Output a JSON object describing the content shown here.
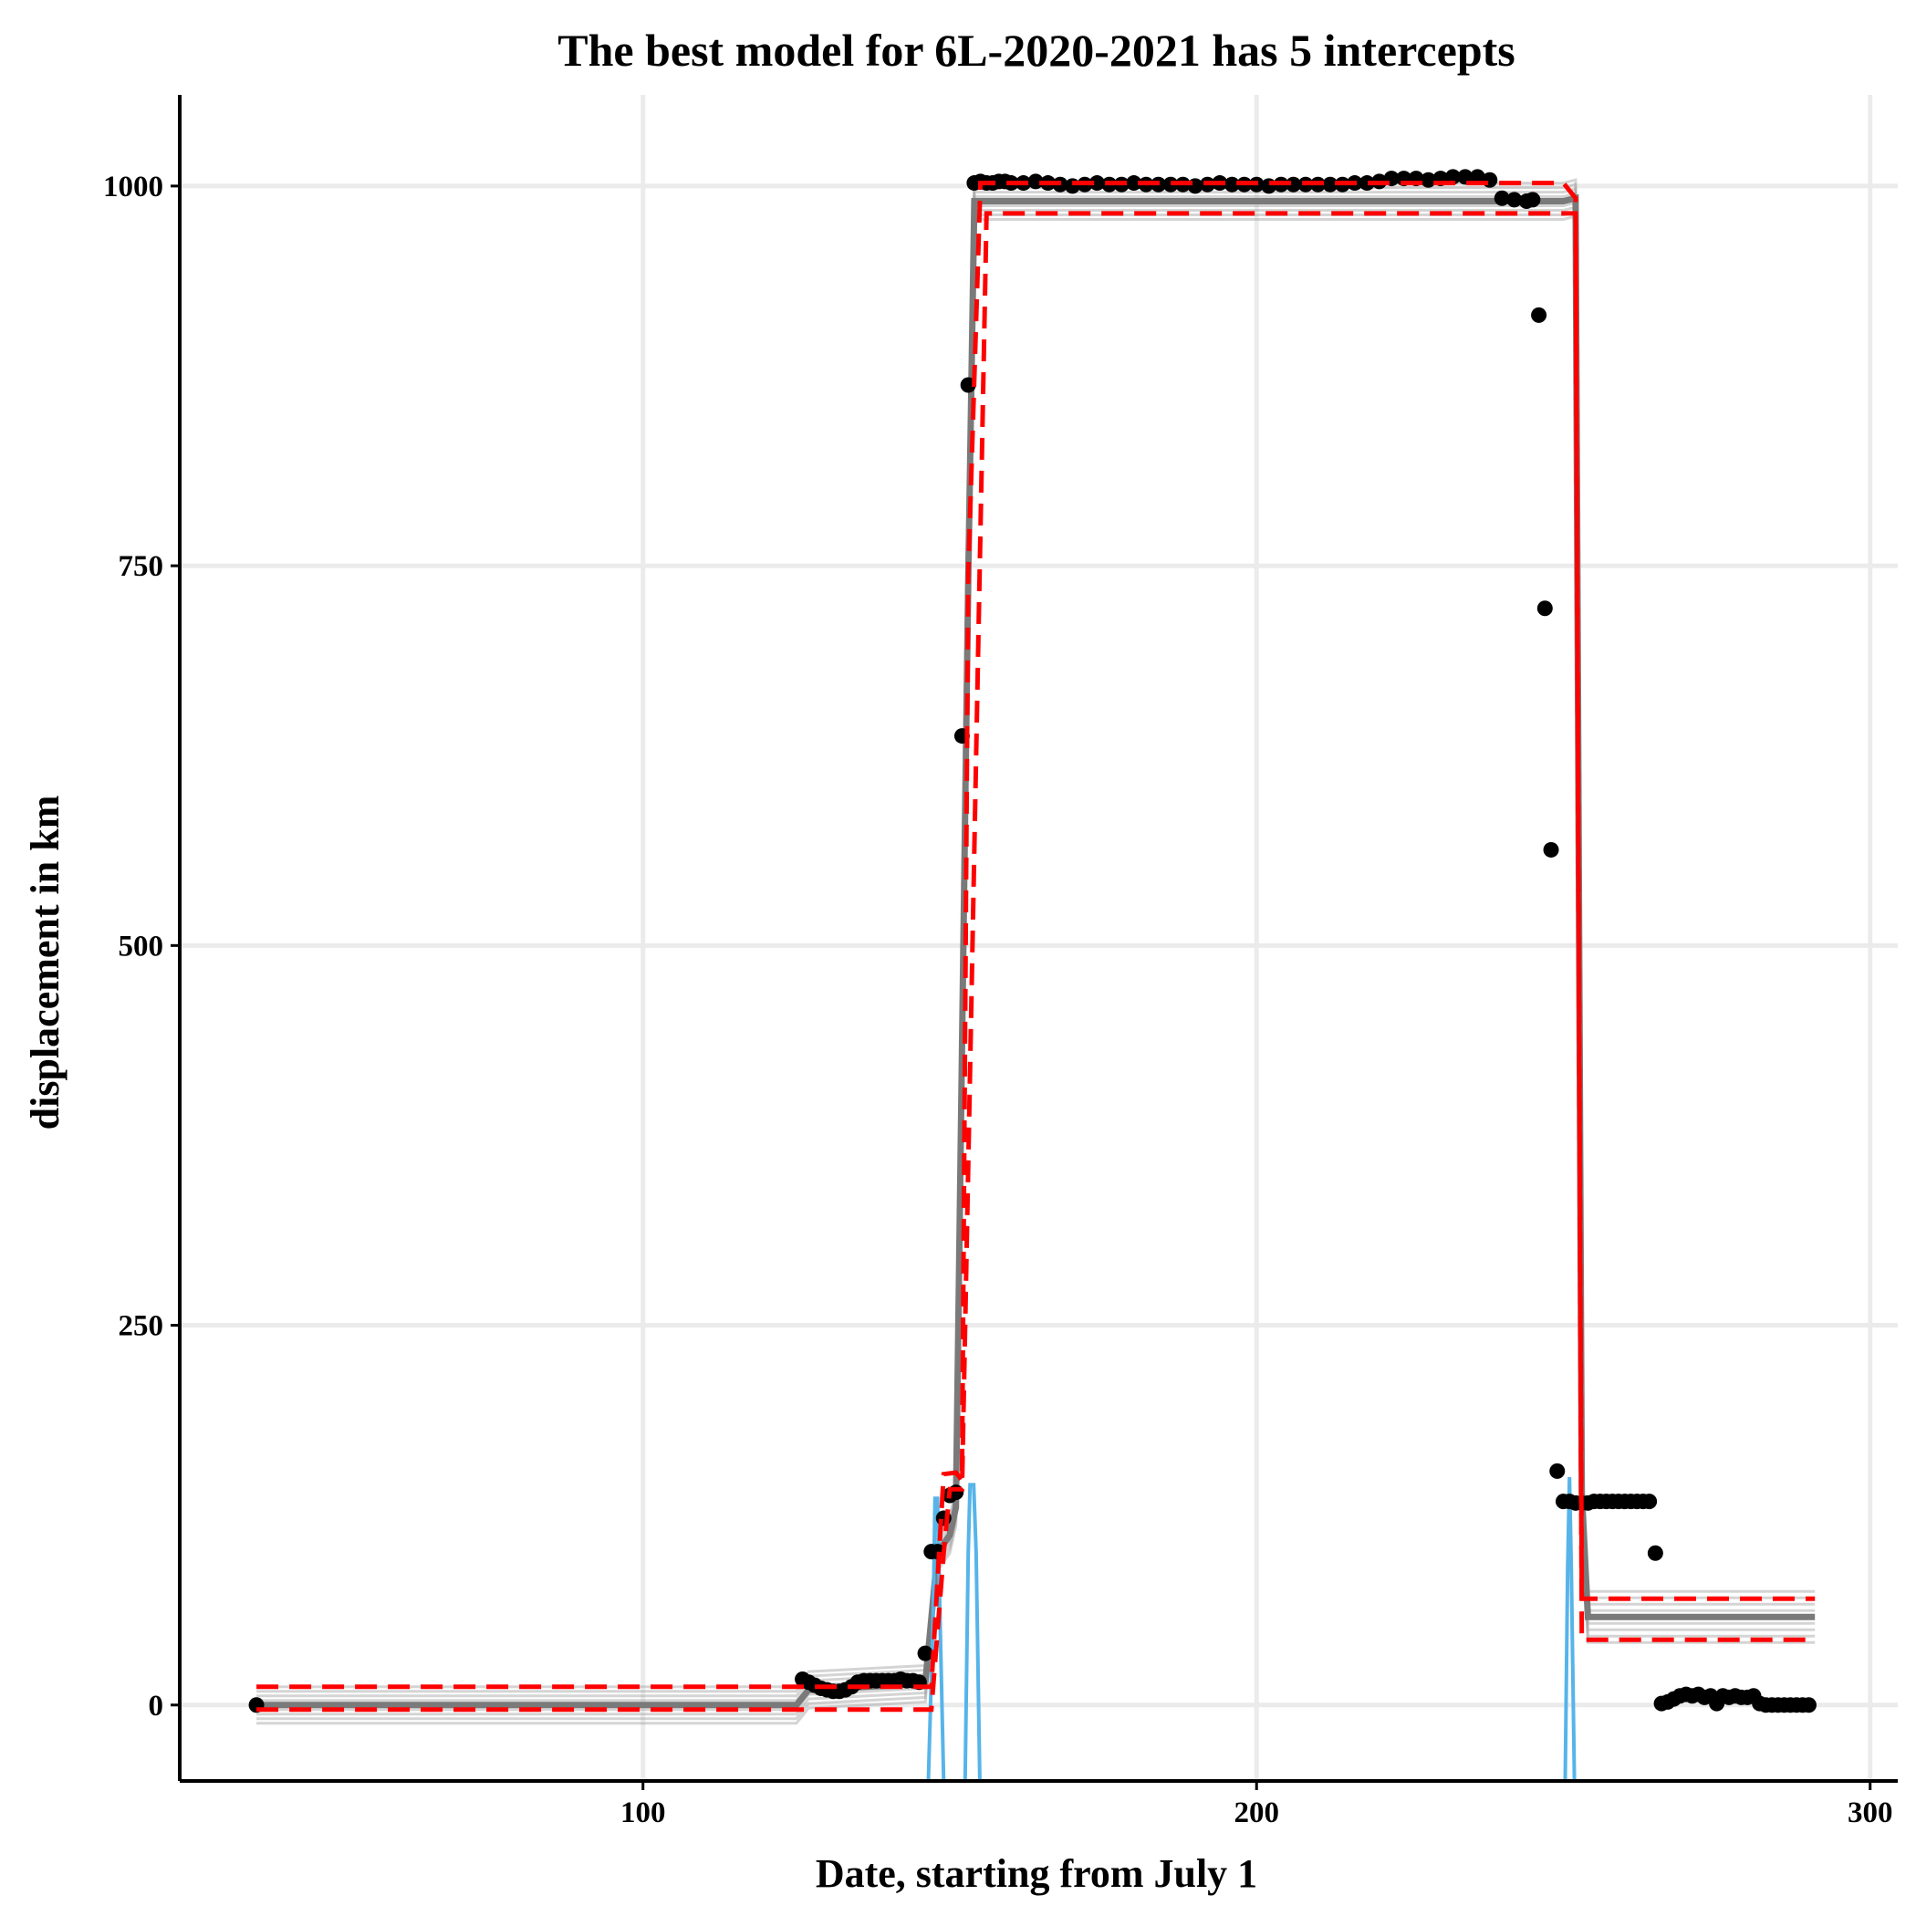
{
  "chart_data": {
    "type": "scatter",
    "title": "The best model for 6L-2020-2021 has 5 intercepts",
    "xlabel": "Date, starting from July 1",
    "ylabel": "displacement in km",
    "xlim": [
      24.5,
      304.5
    ],
    "ylim": [
      -50,
      1060
    ],
    "x_ticks": [
      100,
      200,
      300
    ],
    "y_ticks": [
      0,
      250,
      500,
      750,
      1000
    ],
    "x_tick_labels": [
      "100",
      "200",
      "300"
    ],
    "y_tick_labels": [
      "0",
      "250",
      "500",
      "750",
      "1000"
    ],
    "grid": true,
    "legend": "none",
    "colors": {
      "points": "#000000",
      "best_fit": "#ff0000",
      "posterior_fits": "#a0a0a0",
      "mean_fit": "#7a7a7a",
      "changepoint_density": "#56b4e9",
      "grid": "#ebebeb"
    },
    "points": [
      [
        37,
        0
      ],
      [
        126,
        17
      ],
      [
        127,
        15
      ],
      [
        128,
        13
      ],
      [
        129,
        11
      ],
      [
        130,
        10
      ],
      [
        131,
        9
      ],
      [
        132,
        9
      ],
      [
        133,
        10
      ],
      [
        134,
        12
      ],
      [
        135,
        15
      ],
      [
        136,
        16
      ],
      [
        137,
        16
      ],
      [
        138,
        16
      ],
      [
        139,
        16
      ],
      [
        140,
        16
      ],
      [
        141,
        16
      ],
      [
        142,
        17
      ],
      [
        143,
        16
      ],
      [
        144,
        16
      ],
      [
        145,
        15
      ],
      [
        146,
        34
      ],
      [
        147,
        101
      ],
      [
        148,
        101
      ],
      [
        149,
        123
      ],
      [
        150,
        138
      ],
      [
        151,
        140
      ],
      [
        152,
        638
      ],
      [
        153,
        869
      ],
      [
        154,
        1002
      ],
      [
        155,
        1003
      ],
      [
        156,
        1002
      ],
      [
        157,
        1002
      ],
      [
        158,
        1003
      ],
      [
        159,
        1003
      ],
      [
        160,
        1002
      ],
      [
        162,
        1002
      ],
      [
        164,
        1003
      ],
      [
        166,
        1002
      ],
      [
        168,
        1001
      ],
      [
        170,
        1000
      ],
      [
        172,
        1001
      ],
      [
        174,
        1002
      ],
      [
        176,
        1001
      ],
      [
        178,
        1001
      ],
      [
        180,
        1002
      ],
      [
        182,
        1001
      ],
      [
        184,
        1001
      ],
      [
        186,
        1001
      ],
      [
        188,
        1001
      ],
      [
        190,
        1000
      ],
      [
        192,
        1001
      ],
      [
        194,
        1002
      ],
      [
        196,
        1001
      ],
      [
        198,
        1001
      ],
      [
        200,
        1001
      ],
      [
        202,
        1000
      ],
      [
        204,
        1001
      ],
      [
        206,
        1001
      ],
      [
        208,
        1001
      ],
      [
        210,
        1001
      ],
      [
        212,
        1001
      ],
      [
        214,
        1001
      ],
      [
        216,
        1002
      ],
      [
        218,
        1002
      ],
      [
        220,
        1003
      ],
      [
        222,
        1005
      ],
      [
        224,
        1005
      ],
      [
        226,
        1005
      ],
      [
        228,
        1004
      ],
      [
        230,
        1005
      ],
      [
        232,
        1006
      ],
      [
        234,
        1006
      ],
      [
        236,
        1006
      ],
      [
        238,
        1004
      ],
      [
        240,
        992
      ],
      [
        242,
        991
      ],
      [
        244,
        990
      ],
      [
        245,
        991
      ],
      [
        246,
        915
      ],
      [
        247,
        722
      ],
      [
        248,
        563
      ],
      [
        249,
        154
      ],
      [
        250,
        134
      ],
      [
        251,
        134
      ],
      [
        252,
        133
      ],
      [
        253,
        133
      ],
      [
        254,
        133
      ],
      [
        255,
        134
      ],
      [
        256,
        134
      ],
      [
        257,
        134
      ],
      [
        258,
        134
      ],
      [
        259,
        134
      ],
      [
        260,
        134
      ],
      [
        261,
        134
      ],
      [
        262,
        134
      ],
      [
        263,
        134
      ],
      [
        264,
        134
      ],
      [
        265,
        100
      ],
      [
        266,
        1
      ],
      [
        267,
        2
      ],
      [
        268,
        4
      ],
      [
        269,
        6
      ],
      [
        270,
        7
      ],
      [
        271,
        6
      ],
      [
        272,
        7
      ],
      [
        273,
        5
      ],
      [
        274,
        6
      ],
      [
        275,
        1
      ],
      [
        276,
        6
      ],
      [
        277,
        5
      ],
      [
        278,
        6
      ],
      [
        279,
        5
      ],
      [
        280,
        5
      ],
      [
        281,
        6
      ],
      [
        282,
        1
      ],
      [
        283,
        0
      ],
      [
        284,
        0
      ],
      [
        285,
        0
      ],
      [
        286,
        0
      ],
      [
        287,
        0
      ],
      [
        288,
        0
      ],
      [
        289,
        0
      ],
      [
        290,
        0
      ]
    ],
    "best_fit_lower": [
      [
        37,
        -3
      ],
      [
        147,
        -3
      ],
      [
        149,
        100
      ],
      [
        150,
        142
      ],
      [
        152,
        142
      ],
      [
        156,
        982
      ],
      [
        250,
        982
      ],
      [
        252,
        982
      ],
      [
        253,
        43
      ],
      [
        291,
        43
      ]
    ],
    "best_fit_upper": [
      [
        37,
        12
      ],
      [
        147,
        12
      ],
      [
        149,
        152
      ],
      [
        151,
        153
      ],
      [
        152,
        148
      ],
      [
        153,
        745
      ],
      [
        155,
        1002
      ],
      [
        250,
        1002
      ],
      [
        252,
        992
      ],
      [
        253,
        70
      ],
      [
        291,
        70
      ]
    ],
    "mean_fit": [
      [
        37,
        0
      ],
      [
        125,
        0
      ],
      [
        127,
        10
      ],
      [
        146,
        14
      ],
      [
        148,
        100
      ],
      [
        150,
        112
      ],
      [
        151,
        130
      ],
      [
        153,
        740
      ],
      [
        154,
        990
      ],
      [
        250,
        990
      ],
      [
        252,
        992
      ],
      [
        253,
        140
      ],
      [
        254,
        58
      ],
      [
        291,
        58
      ]
    ],
    "changepoint_density": [
      [
        146.5,
        -50
      ],
      [
        147.3,
        60
      ],
      [
        147.6,
        136
      ],
      [
        148.0,
        136
      ],
      [
        148.4,
        60
      ],
      [
        149.0,
        -50
      ],
      [
        152.5,
        -50
      ],
      [
        153.0,
        100
      ],
      [
        153.3,
        145
      ],
      [
        153.9,
        145
      ],
      [
        154.3,
        100
      ],
      [
        154.9,
        -50
      ],
      [
        250.3,
        -50
      ],
      [
        250.7,
        90
      ],
      [
        251.0,
        150
      ],
      [
        251.3,
        90
      ],
      [
        251.8,
        -50
      ]
    ]
  }
}
